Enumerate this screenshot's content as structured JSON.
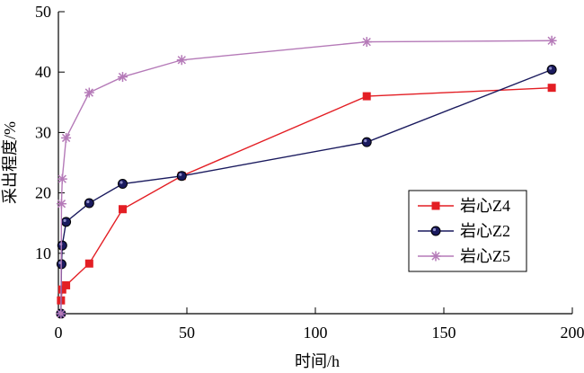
{
  "chart_data": {
    "type": "line",
    "xlabel": "时间/h",
    "ylabel": "采出程度/%",
    "xlim": [
      0,
      200
    ],
    "ylim": [
      0,
      50
    ],
    "xticks": [
      0,
      50,
      100,
      150,
      200
    ],
    "yticks": [
      10,
      20,
      30,
      40,
      50
    ],
    "grid": false,
    "legend_position": "right-middle",
    "series": [
      {
        "name": "岩心Z4",
        "color": "#e31e24",
        "marker": "square",
        "x": [
          1,
          1.5,
          3,
          12,
          25,
          48,
          120,
          192
        ],
        "y": [
          2.2,
          4.0,
          4.7,
          8.3,
          17.3,
          22.8,
          36.0,
          37.4
        ]
      },
      {
        "name": "岩心Z2",
        "color": "#1a1a5e",
        "marker": "circle",
        "x": [
          1,
          1.2,
          1.5,
          3,
          12,
          25,
          48,
          120,
          192
        ],
        "y": [
          0.0,
          8.2,
          11.3,
          15.2,
          18.3,
          21.5,
          22.8,
          28.4,
          40.4
        ]
      },
      {
        "name": "岩心Z5",
        "color": "#b57ab8",
        "marker": "asterisk",
        "x": [
          1,
          1.2,
          1.5,
          3,
          12,
          25,
          48,
          120,
          192
        ],
        "y": [
          0.0,
          18.2,
          22.3,
          29.1,
          36.6,
          39.2,
          42.0,
          45.0,
          45.2
        ]
      }
    ]
  }
}
